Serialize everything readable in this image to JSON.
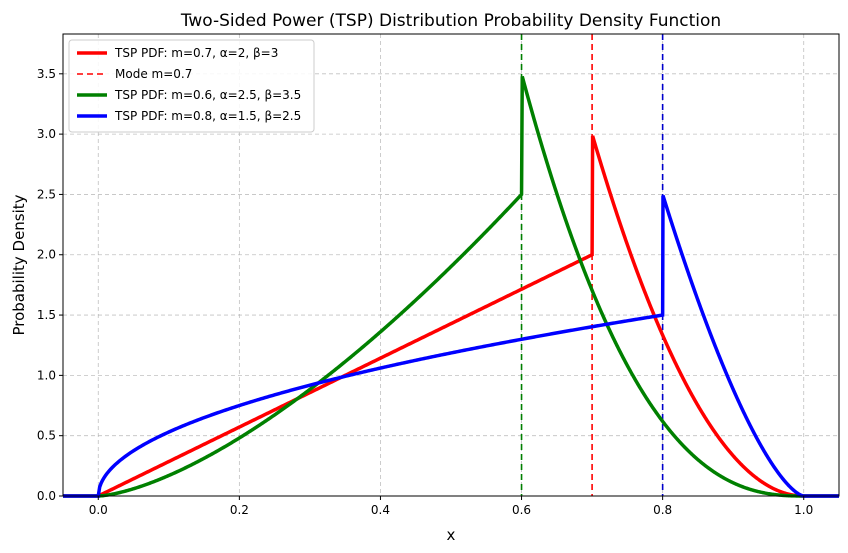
{
  "chart_data": {
    "type": "line",
    "title": "Two-Sided Power (TSP) Distribution Probability Density Function",
    "xlabel": "x",
    "ylabel": "Probability Density",
    "xlim": [
      -0.05,
      1.05
    ],
    "ylim": [
      0.0,
      3.83
    ],
    "xticks": [
      0.0,
      0.2,
      0.4,
      0.6,
      0.8,
      1.0
    ],
    "xtick_labels": [
      "0.0",
      "0.2",
      "0.4",
      "0.6",
      "0.8",
      "1.0"
    ],
    "yticks": [
      0.0,
      0.5,
      1.0,
      1.5,
      2.0,
      2.5,
      3.0,
      3.5
    ],
    "ytick_labels": [
      "0.0",
      "0.5",
      "1.0",
      "1.5",
      "2.0",
      "2.5",
      "3.0",
      "3.5"
    ],
    "grid": true,
    "legend_position": "top-left",
    "series": [
      {
        "name": "TSP PDF: m=0.7, α=2, β=3",
        "color": "#ff0000",
        "style": "solid",
        "m": 0.7,
        "alpha": 2,
        "beta": 3
      },
      {
        "name": "Mode m=0.7",
        "color": "#ff0000",
        "style": "dashed",
        "vline_x": 0.7
      },
      {
        "name": "TSP PDF: m=0.6, α=2.5, β=3.5",
        "color": "#008000",
        "style": "solid",
        "m": 0.6,
        "alpha": 2.5,
        "beta": 3.5
      },
      {
        "name": "TSP PDF: m=0.8, α=1.5, β=2.5",
        "color": "#0000ff",
        "style": "solid",
        "m": 0.8,
        "alpha": 1.5,
        "beta": 2.5
      }
    ],
    "mode_lines": [
      {
        "x": 0.6,
        "color": "#008000"
      },
      {
        "x": 0.7,
        "color": "#ff0000"
      },
      {
        "x": 0.8,
        "color": "#0000cc"
      }
    ]
  }
}
